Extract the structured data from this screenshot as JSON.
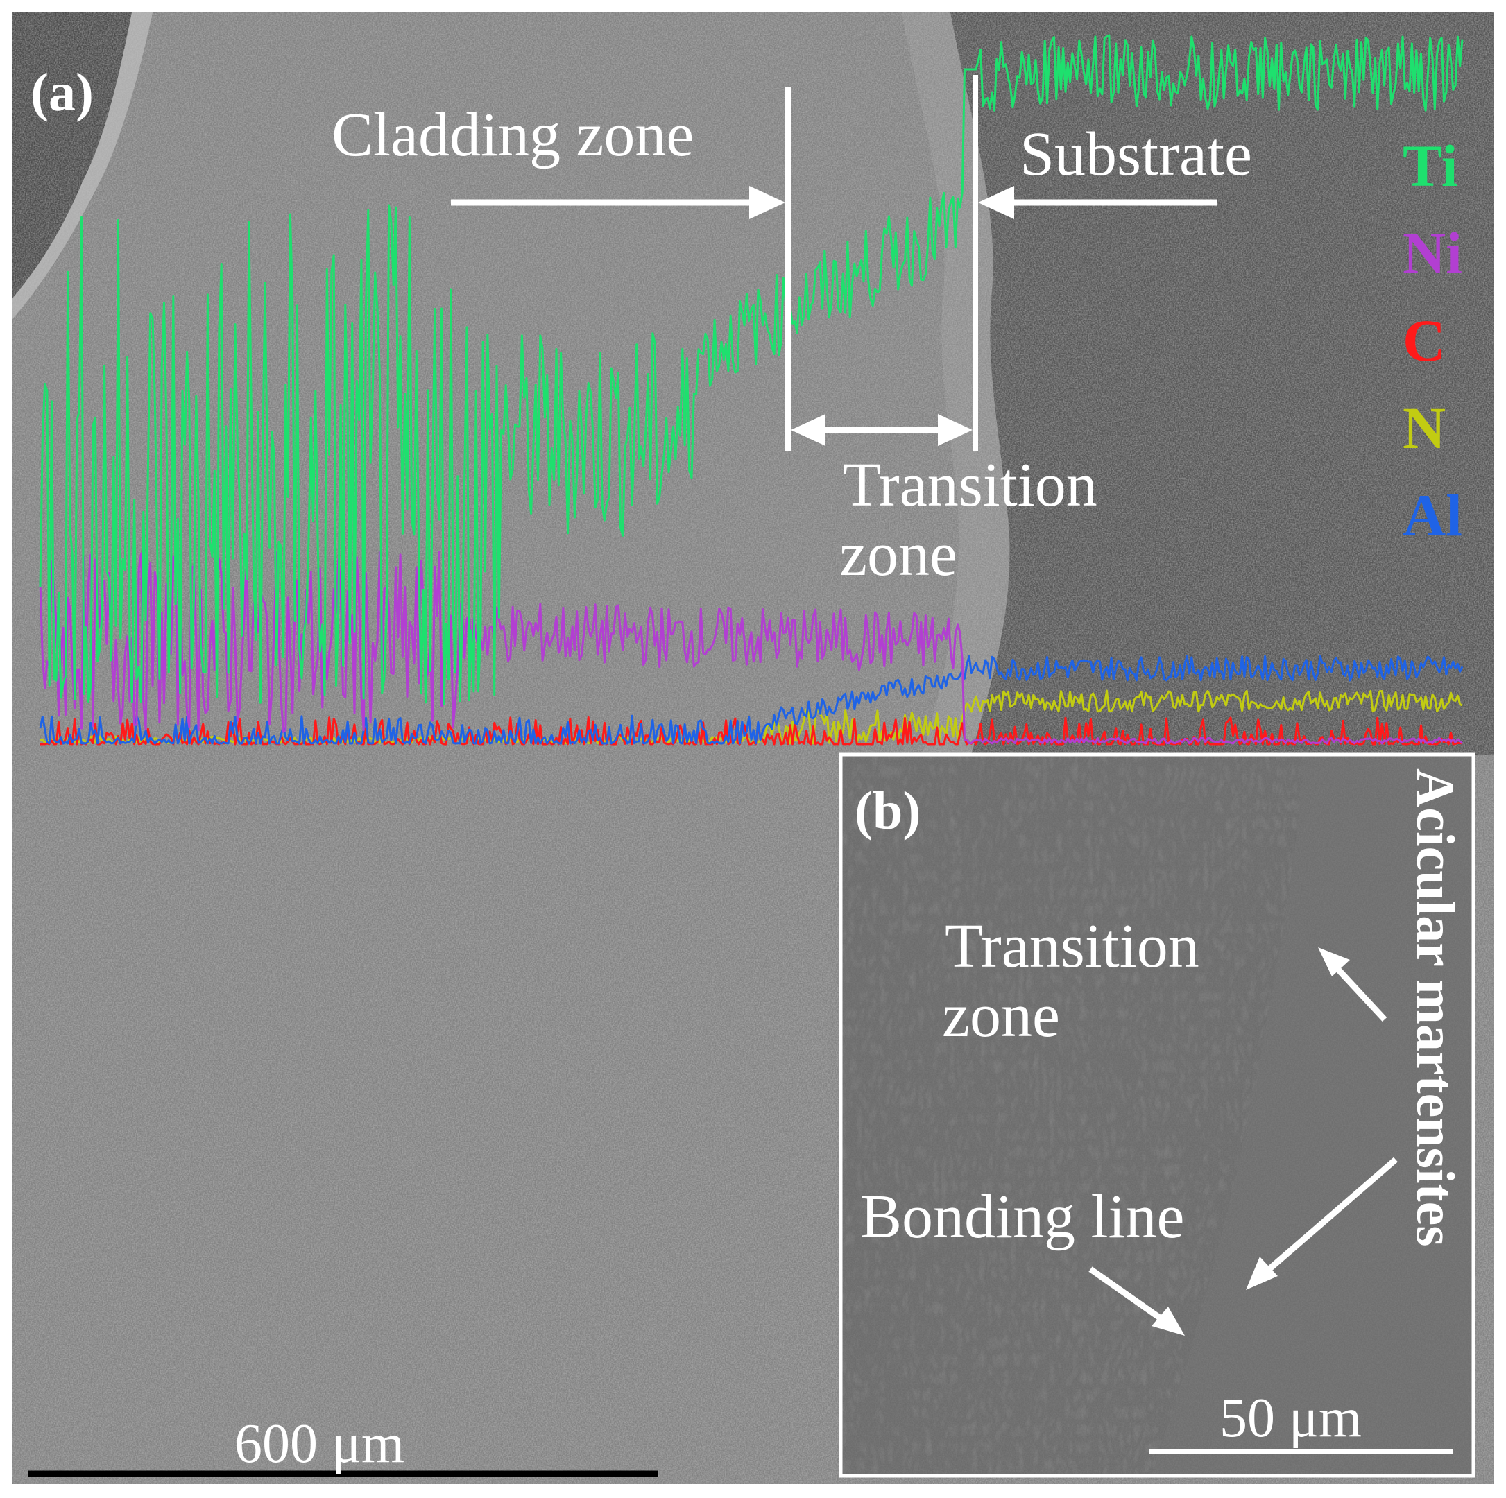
{
  "panel_a": {
    "label": "(a)",
    "cladding_zone": "Cladding zone",
    "substrate": "Substrate",
    "transition_line1": "Transition",
    "transition_line2": "zone",
    "scale_bar": "600 μm"
  },
  "legend": [
    {
      "label": "Ti",
      "color": "#1ee06e"
    },
    {
      "label": "Ni",
      "color": "#b23fd2"
    },
    {
      "label": "C",
      "color": "#ff1a1a"
    },
    {
      "label": "N",
      "color": "#c2cc12"
    },
    {
      "label": "Al",
      "color": "#1f63e6"
    }
  ],
  "panel_b": {
    "label": "(b)",
    "transition_line1": "Transition",
    "transition_line2": "zone",
    "bonding_line": "Bonding line",
    "acicular_martensites": "Acicular martensites",
    "scale_bar": "50 μm"
  }
}
